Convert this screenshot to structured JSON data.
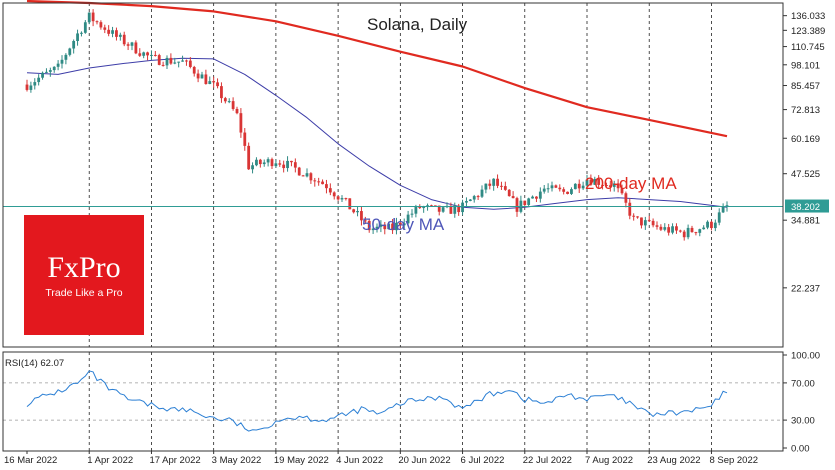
{
  "chart_data": [
    {
      "type": "candlestick",
      "title": "Solana, Daily",
      "ylim": [
        15,
        148
      ],
      "y_ticks": [
        22.237,
        34.881,
        47.525,
        60.169,
        72.813,
        85.457,
        98.101,
        110.745,
        123.389,
        136.033
      ],
      "current_price_label": "38.202",
      "current_price": 38.2,
      "x_labels": [
        "16 Mar 2022",
        "1 Apr 2022",
        "17 Apr 2022",
        "3 May 2022",
        "19 May 2022",
        "4 Jun 2022",
        "20 Jun 2022",
        "6 Jul 2022",
        "22 Jul 2022",
        "7 Aug 2022",
        "23 Aug 2022",
        "8 Sep 2022"
      ],
      "grid": "vertical dashed at every x label",
      "colors": {
        "up": "#2f8a84",
        "down": "#d93535",
        "ma200": "#e02a20",
        "ma50": "#3d3da8",
        "price_line": "#2f9c95"
      },
      "close_anchors": {
        "x": [
          "16 Mar 2022",
          "24 Mar 2022",
          "1 Apr 2022",
          "8 Apr 2022",
          "17 Apr 2022",
          "25 Apr 2022",
          "3 May 2022",
          "9 May 2022",
          "12 May 2022",
          "19 May 2022",
          "26 May 2022",
          "1 Jun 2022",
          "4 Jun 2022",
          "12 Jun 2022",
          "18 Jun 2022",
          "25 Jun 2022",
          "1 Jul 2022",
          "6 Jul 2022",
          "14 Jul 2022",
          "20 Jul 2022",
          "27 Jul 2022",
          "1 Aug 2022",
          "7 Aug 2022",
          "14 Aug 2022",
          "19 Aug 2022",
          "26 Aug 2022",
          "1 Sep 2022",
          "8 Sep 2022",
          "12 Sep 2022"
        ],
        "y": [
          86,
          96,
          135,
          118,
          102,
          100,
          85,
          70,
          50,
          52,
          48,
          44,
          41,
          33,
          33,
          38,
          37,
          38,
          45,
          38,
          43,
          42,
          46,
          44,
          35,
          33,
          32,
          34,
          38.2
        ]
      },
      "series": [
        {
          "name": "200-day MA",
          "x": [
            "16 Mar 2022",
            "1 Apr 2022",
            "17 Apr 2022",
            "3 May 2022",
            "19 May 2022",
            "4 Jun 2022",
            "20 Jun 2022",
            "6 Jul 2022",
            "22 Jul 2022",
            "7 Aug 2022",
            "23 Aug 2022",
            "12 Sep 2022"
          ],
          "y": [
            150,
            148,
            145,
            140,
            131,
            119,
            107,
            97,
            84,
            74,
            68,
            61
          ]
        },
        {
          "name": "50-day MA",
          "x": [
            "16 Mar 2022",
            "24 Mar 2022",
            "1 Apr 2022",
            "10 Apr 2022",
            "17 Apr 2022",
            "25 Apr 2022",
            "3 May 2022",
            "11 May 2022",
            "19 May 2022",
            "27 May 2022",
            "4 Jun 2022",
            "12 Jun 2022",
            "20 Jun 2022",
            "28 Jun 2022",
            "6 Jul 2022",
            "14 Jul 2022",
            "22 Jul 2022",
            "30 Jul 2022",
            "7 Aug 2022",
            "15 Aug 2022",
            "23 Aug 2022",
            "31 Aug 2022",
            "12 Sep 2022"
          ],
          "y": [
            93,
            92,
            96,
            99,
            101,
            102.5,
            102,
            92,
            80,
            69,
            58,
            50,
            44,
            40,
            38,
            37.5,
            38,
            39,
            40,
            40.5,
            40,
            39.5,
            38
          ]
        }
      ],
      "annotations": [
        "200-day MA",
        "50-day MA"
      ]
    },
    {
      "type": "line",
      "title": "",
      "indicator_label": "RSI(14) 62.07",
      "ylim": [
        0,
        100
      ],
      "y_ticks": [
        "0.00",
        "30.00",
        "70.00",
        "100.00"
      ],
      "reference_lines": [
        30,
        70
      ],
      "color": "#2b7fd4",
      "series": [
        {
          "name": "RSI(14)",
          "x": [
            "16 Mar 2022",
            "20 Mar 2022",
            "25 Mar 2022",
            "30 Mar 2022",
            "1 Apr 2022",
            "6 Apr 2022",
            "11 Apr 2022",
            "17 Apr 2022",
            "22 Apr 2022",
            "27 Apr 2022",
            "3 May 2022",
            "7 May 2022",
            "11 May 2022",
            "14 May 2022",
            "19 May 2022",
            "25 May 2022",
            "31 May 2022",
            "4 Jun 2022",
            "10 Jun 2022",
            "15 Jun 2022",
            "20 Jun 2022",
            "25 Jun 2022",
            "1 Jul 2022",
            "6 Jul 2022",
            "12 Jul 2022",
            "18 Jul 2022",
            "22 Jul 2022",
            "28 Jul 2022",
            "2 Aug 2022",
            "7 Aug 2022",
            "12 Aug 2022",
            "17 Aug 2022",
            "23 Aug 2022",
            "28 Aug 2022",
            "2 Sep 2022",
            "8 Sep 2022",
            "12 Sep 2022"
          ],
          "y": [
            48,
            55,
            62,
            72,
            82,
            64,
            52,
            46,
            42,
            40,
            32,
            30,
            22,
            16,
            30,
            34,
            30,
            33,
            42,
            36,
            48,
            52,
            55,
            42,
            56,
            64,
            52,
            48,
            58,
            52,
            57,
            50,
            36,
            37,
            39,
            45,
            62
          ]
        }
      ]
    }
  ],
  "branding": {
    "name": "FxPro",
    "tagline": "Trade Like a Pro"
  }
}
